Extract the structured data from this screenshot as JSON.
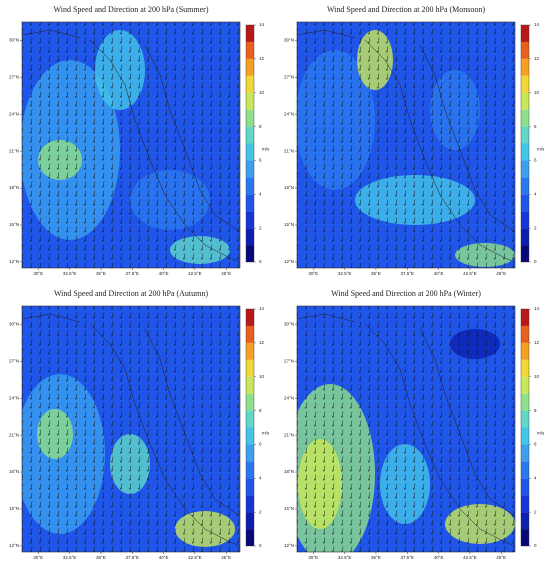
{
  "panels": [
    {
      "title": "Wind Speed and Direction at 200 hPa (Summer)"
    },
    {
      "title": "Wind Speed and Direction at 200 hPa (Monsoon)"
    },
    {
      "title": "Wind Speed and Direction at 200 hPa (Autumn)"
    },
    {
      "title": "Wind Speed and Direction at 200 hPa (Winter)"
    }
  ],
  "map": {
    "xlim": [
      28.7,
      46.1
    ],
    "ylim": [
      11.5,
      31.5
    ],
    "xticks": [
      {
        "value": 30,
        "label": "30°E"
      },
      {
        "value": 32.5,
        "label": "32.5°E"
      },
      {
        "value": 35,
        "label": "35°E"
      },
      {
        "value": 37.5,
        "label": "37.5°E"
      },
      {
        "value": 40,
        "label": "40°E"
      },
      {
        "value": 42.5,
        "label": "42.5°E"
      },
      {
        "value": 45,
        "label": "45°E"
      }
    ],
    "yticks": [
      {
        "value": 12,
        "label": "12°N"
      },
      {
        "value": 15,
        "label": "15°N"
      },
      {
        "value": 18,
        "label": "18°N"
      },
      {
        "value": 21,
        "label": "21°N"
      },
      {
        "value": 24,
        "label": "24°N"
      },
      {
        "value": 27,
        "label": "27°N"
      },
      {
        "value": 30,
        "label": "30°N"
      }
    ]
  },
  "colorbar": {
    "lim": [
      0,
      14
    ],
    "ticks": [
      0,
      2,
      4,
      6,
      8,
      10,
      12,
      14
    ],
    "unit": "m/s",
    "colors": [
      "#08087a",
      "#0d1fb0",
      "#1436d6",
      "#1f55e8",
      "#2a78f0",
      "#3aa0f0",
      "#44c4e8",
      "#5fd8c8",
      "#8fe08a",
      "#c8e85a",
      "#f0d838",
      "#f5a020",
      "#e8601c",
      "#b81818"
    ]
  }
}
